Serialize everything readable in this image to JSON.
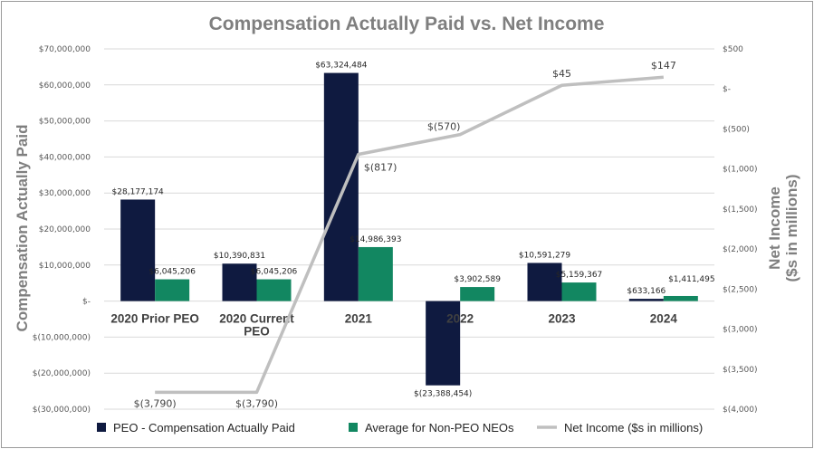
{
  "chart_data": {
    "type": "bar",
    "title": "Compensation Actually Paid vs. Net Income",
    "categories": [
      [
        "2020 Prior PEO"
      ],
      [
        "2020 Current",
        "PEO"
      ],
      [
        "2021"
      ],
      [
        "2022"
      ],
      [
        "2023"
      ],
      [
        "2024"
      ]
    ],
    "ylabel": "Compensation Actually Paid",
    "ylim": [
      -30000000,
      70000000
    ],
    "y_ticks": [
      {
        "value": 70000000,
        "label": "$70,000,000"
      },
      {
        "value": 60000000,
        "label": "$60,000,000"
      },
      {
        "value": 50000000,
        "label": "$50,000,000"
      },
      {
        "value": 40000000,
        "label": "$40,000,000"
      },
      {
        "value": 30000000,
        "label": "$30,000,000"
      },
      {
        "value": 20000000,
        "label": "$20,000,000"
      },
      {
        "value": 10000000,
        "label": "$10,000,000"
      },
      {
        "value": 0,
        "label": "$-"
      },
      {
        "value": -10000000,
        "label": "$(10,000,000)"
      },
      {
        "value": -20000000,
        "label": "$(20,000,000)"
      },
      {
        "value": -30000000,
        "label": "$(30,000,000)"
      }
    ],
    "y2label": [
      "Net Income",
      "($s in millions)"
    ],
    "y2lim": [
      -4000,
      500
    ],
    "y2_ticks": [
      {
        "value": 500,
        "label": "$500"
      },
      {
        "value": 0,
        "label": "$-"
      },
      {
        "value": -500,
        "label": "$(500)"
      },
      {
        "value": -1000,
        "label": "$(1,000)"
      },
      {
        "value": -1500,
        "label": "$(1,500)"
      },
      {
        "value": -2000,
        "label": "$(2,000)"
      },
      {
        "value": -2500,
        "label": "$(2,500)"
      },
      {
        "value": -3000,
        "label": "$(3,000)"
      },
      {
        "value": -3500,
        "label": "$(3,500)"
      },
      {
        "value": -4000,
        "label": "$(4,000)"
      }
    ],
    "series": [
      {
        "name": "PEO - Compensation Actually Paid",
        "type": "bar",
        "color": "#0f1a40",
        "values": [
          28177174,
          10390831,
          63324484,
          -23388454,
          10591279,
          633166
        ],
        "labels": [
          "$28,177,174",
          "$10,390,831",
          "$63,324,484",
          "$(23,388,454)",
          "$10,591,279",
          "$633,166"
        ]
      },
      {
        "name": "Average for Non-PEO NEOs",
        "type": "bar",
        "color": "#128761",
        "values": [
          6045206,
          6045206,
          14986393,
          3902589,
          5159367,
          1411495
        ],
        "labels": [
          "$6,045,206",
          "$6,045,206",
          "$14,986,393",
          "$3,902,589",
          "$5,159,367",
          "$1,411,495"
        ]
      },
      {
        "name": "Net Income ($s in millions)",
        "type": "line",
        "axis": "secondary",
        "color": "#bfbfbf",
        "values": [
          -3790,
          -3790,
          -817,
          -570,
          45,
          147
        ],
        "labels": [
          "$(3,790)",
          "$(3,790)",
          "$(817)",
          "$(570)",
          "$45",
          "$147"
        ]
      }
    ],
    "legend_position": "bottom",
    "grid": true
  }
}
